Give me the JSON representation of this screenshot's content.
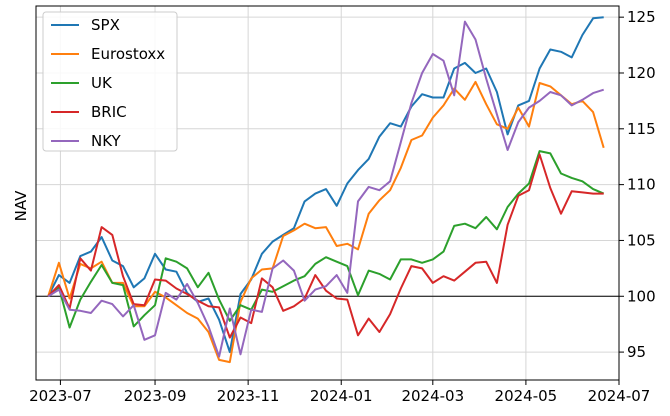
{
  "chart_data": {
    "type": "line",
    "ylabel": "NAV",
    "xlabel": "",
    "y_axis_side": "right",
    "ylim": [
      92.5,
      126
    ],
    "y_ticks": [
      95,
      100,
      105,
      110,
      115,
      120,
      125
    ],
    "x_ticks": [
      "2023-07",
      "2023-09",
      "2023-11",
      "2024-01",
      "2024-03",
      "2024-05",
      "2024-07"
    ],
    "xlim": [
      "2023-06-15",
      "2024-07-01"
    ],
    "grid": true,
    "reference_line": 100,
    "legend_position": "top-left",
    "x": [
      "2023-06-23",
      "2023-06-30",
      "2023-07-07",
      "2023-07-14",
      "2023-07-21",
      "2023-07-28",
      "2023-08-04",
      "2023-08-11",
      "2023-08-18",
      "2023-08-25",
      "2023-09-01",
      "2023-09-08",
      "2023-09-15",
      "2023-09-22",
      "2023-09-29",
      "2023-10-06",
      "2023-10-13",
      "2023-10-20",
      "2023-10-27",
      "2023-11-03",
      "2023-11-10",
      "2023-11-17",
      "2023-11-24",
      "2023-12-01",
      "2023-12-08",
      "2023-12-15",
      "2023-12-22",
      "2023-12-29",
      "2024-01-05",
      "2024-01-12",
      "2024-01-19",
      "2024-01-26",
      "2024-02-02",
      "2024-02-09",
      "2024-02-16",
      "2024-02-23",
      "2024-03-01",
      "2024-03-08",
      "2024-03-15",
      "2024-03-22",
      "2024-03-29",
      "2024-04-05",
      "2024-04-12",
      "2024-04-19",
      "2024-04-26",
      "2024-05-03",
      "2024-05-10",
      "2024-05-17",
      "2024-05-24",
      "2024-05-31",
      "2024-06-07",
      "2024-06-14",
      "2024-06-21"
    ],
    "series": [
      {
        "name": "SPX",
        "color": "#1f77b4",
        "values": [
          100.0,
          101.9,
          101.2,
          103.6,
          104.0,
          105.3,
          103.2,
          102.7,
          100.8,
          101.6,
          103.8,
          102.4,
          102.2,
          100.3,
          99.5,
          99.8,
          97.9,
          95.0,
          100.2,
          101.5,
          103.8,
          104.9,
          105.5,
          106.1,
          108.5,
          109.2,
          109.6,
          108.1,
          110.1,
          111.3,
          112.3,
          114.3,
          115.5,
          115.2,
          117.0,
          118.1,
          117.8,
          117.8,
          120.4,
          120.9,
          120.0,
          120.4,
          118.3,
          114.5,
          117.1,
          117.5,
          120.4,
          122.1,
          121.9,
          121.4,
          123.4,
          124.9,
          125.0
        ]
      },
      {
        "name": "Eurostoxx",
        "color": "#ff7f0e",
        "values": [
          100.0,
          103.0,
          99.8,
          102.9,
          102.5,
          103.1,
          101.2,
          101.2,
          99.1,
          99.1,
          100.4,
          99.9,
          99.2,
          98.5,
          98.0,
          96.8,
          94.3,
          94.1,
          99.5,
          101.6,
          102.4,
          102.5,
          105.4,
          105.9,
          106.5,
          106.1,
          106.2,
          104.5,
          104.7,
          104.2,
          107.4,
          108.6,
          109.5,
          111.5,
          114.0,
          114.4,
          116.0,
          117.1,
          118.6,
          117.6,
          119.2,
          117.2,
          115.4,
          115.0,
          116.9,
          115.2,
          119.1,
          118.8,
          118.0,
          117.2,
          117.5,
          116.5,
          113.3
        ]
      },
      {
        "name": "UK",
        "color": "#2ca02c",
        "values": [
          100.0,
          100.8,
          97.2,
          99.7,
          101.3,
          102.8,
          101.2,
          101.0,
          97.3,
          98.3,
          99.2,
          103.4,
          103.1,
          102.5,
          100.8,
          102.1,
          99.7,
          97.8,
          99.2,
          98.8,
          100.6,
          100.4,
          100.9,
          101.4,
          101.8,
          102.9,
          103.5,
          103.1,
          102.7,
          100.1,
          102.3,
          102.0,
          101.5,
          103.3,
          103.3,
          103.0,
          103.3,
          104.0,
          106.3,
          106.5,
          106.1,
          107.1,
          106.0,
          108.0,
          109.2,
          110.1,
          113.0,
          112.8,
          111.0,
          110.6,
          110.3,
          109.6,
          109.2
        ]
      },
      {
        "name": "BRIC",
        "color": "#d62728",
        "values": [
          100.0,
          101.0,
          98.9,
          103.4,
          102.3,
          106.2,
          105.5,
          101.8,
          99.3,
          99.2,
          101.5,
          101.4,
          100.7,
          100.2,
          99.6,
          99.1,
          99.0,
          96.3,
          98.1,
          97.6,
          101.6,
          100.8,
          98.7,
          99.1,
          99.8,
          101.9,
          100.5,
          99.8,
          99.7,
          96.5,
          98.0,
          96.8,
          98.4,
          100.7,
          102.7,
          102.5,
          101.2,
          101.8,
          101.4,
          102.2,
          103.0,
          103.1,
          101.2,
          106.4,
          109.0,
          109.5,
          112.7,
          109.7,
          107.4,
          109.4,
          109.3,
          109.2,
          109.2
        ]
      },
      {
        "name": "NKY",
        "color": "#9467bd",
        "values": [
          100.0,
          100.6,
          98.8,
          98.7,
          98.5,
          99.6,
          99.3,
          98.2,
          99.2,
          96.1,
          96.5,
          100.3,
          99.7,
          101.1,
          99.4,
          97.3,
          94.6,
          98.9,
          94.8,
          98.8,
          98.6,
          102.5,
          103.2,
          102.3,
          99.6,
          100.6,
          100.9,
          101.9,
          100.3,
          108.5,
          109.8,
          109.5,
          110.3,
          113.8,
          117.3,
          120.0,
          121.7,
          121.1,
          118.0,
          124.6,
          123.0,
          119.5,
          116.3,
          113.1,
          115.6,
          116.9,
          117.5,
          118.3,
          118.0,
          117.1,
          117.6,
          118.2,
          118.5
        ]
      }
    ]
  }
}
